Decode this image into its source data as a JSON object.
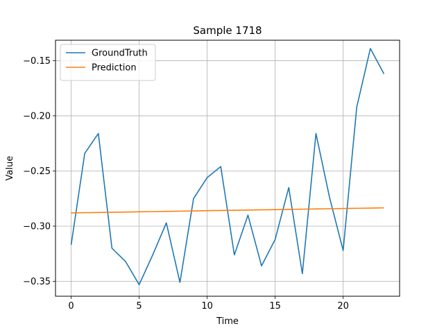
{
  "chart_data": {
    "type": "line",
    "title": "Sample 1718",
    "xlabel": "Time",
    "ylabel": "Value",
    "xlim": [
      -1.15,
      24.15
    ],
    "ylim": [
      -0.3635,
      -0.1315
    ],
    "xticks": [
      0,
      5,
      10,
      15,
      20
    ],
    "xtick_labels": [
      "0",
      "5",
      "10",
      "15",
      "20"
    ],
    "yticks": [
      -0.35,
      -0.3,
      -0.25,
      -0.2,
      -0.15
    ],
    "ytick_labels": [
      "−0.35",
      "−0.30",
      "−0.25",
      "−0.20",
      "−0.15"
    ],
    "grid": true,
    "legend_position": "top-left",
    "x": [
      0,
      1,
      2,
      3,
      4,
      5,
      6,
      7,
      8,
      9,
      10,
      11,
      12,
      13,
      14,
      15,
      16,
      17,
      18,
      19,
      20,
      21,
      22,
      23
    ],
    "series": [
      {
        "name": "GroundTruth",
        "color": "#1f77b4",
        "values": [
          -0.317,
          -0.234,
          -0.216,
          -0.32,
          -0.332,
          -0.353,
          -0.326,
          -0.297,
          -0.351,
          -0.275,
          -0.256,
          -0.246,
          -0.326,
          -0.29,
          -0.336,
          -0.312,
          -0.265,
          -0.343,
          -0.216,
          -0.274,
          -0.322,
          -0.192,
          -0.139,
          -0.162
        ]
      },
      {
        "name": "Prediction",
        "color": "#ff7f0e",
        "values": [
          -0.288,
          -0.2878,
          -0.2876,
          -0.2874,
          -0.2872,
          -0.287,
          -0.2868,
          -0.2866,
          -0.2864,
          -0.2862,
          -0.286,
          -0.2858,
          -0.2856,
          -0.2854,
          -0.2852,
          -0.285,
          -0.2848,
          -0.2846,
          -0.2844,
          -0.2842,
          -0.284,
          -0.2838,
          -0.2836,
          -0.2834
        ]
      }
    ]
  }
}
